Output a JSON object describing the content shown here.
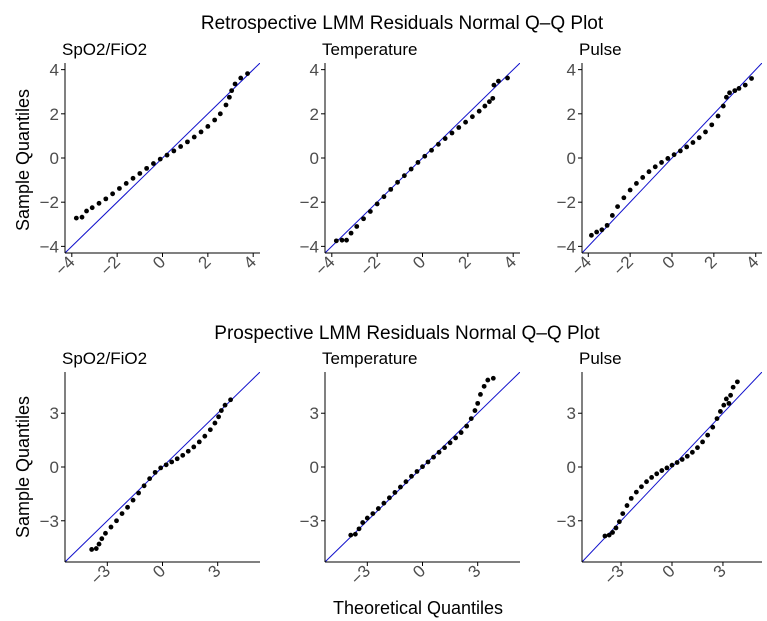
{
  "figure": {
    "x_axis_label": "Theoretical Quantiles",
    "y_axis_label_top": "Sample Quantiles",
    "y_axis_label_bottom": "Sample Quantiles"
  },
  "colors": {
    "reference_line": "#1111cc",
    "points": "#000000",
    "axis": "#000000",
    "tick_labels": "#4d4d4d",
    "text": "#000000"
  },
  "chart_data": [
    {
      "type": "scatter",
      "title": "Retrospective LMM Residuals Normal Q–Q Plot",
      "panels": [
        {
          "subtitle": "SpO2/FiO2",
          "xlim": [
            -4.3,
            4.3
          ],
          "ylim": [
            -4.3,
            4.3
          ],
          "x_ticks": [
            -4,
            -2,
            0,
            2,
            4
          ],
          "x_tick_labels": [
            "-4",
            "-2",
            "0",
            "2",
            "4"
          ],
          "y_ticks": [
            -4,
            -2,
            0,
            2,
            4
          ],
          "y_tick_labels": [
            "-4",
            "-2",
            "0",
            "2",
            "4"
          ],
          "reference_line": {
            "slope": 1,
            "intercept": 0
          },
          "points": [
            [
              -3.8,
              -2.72
            ],
            [
              -3.55,
              -2.68
            ],
            [
              -3.35,
              -2.4
            ],
            [
              -3.1,
              -2.25
            ],
            [
              -2.8,
              -2.05
            ],
            [
              -2.5,
              -1.85
            ],
            [
              -2.2,
              -1.62
            ],
            [
              -1.9,
              -1.38
            ],
            [
              -1.6,
              -1.15
            ],
            [
              -1.3,
              -0.92
            ],
            [
              -1.0,
              -0.7
            ],
            [
              -0.7,
              -0.47
            ],
            [
              -0.4,
              -0.25
            ],
            [
              -0.1,
              -0.05
            ],
            [
              0.2,
              0.13
            ],
            [
              0.5,
              0.32
            ],
            [
              0.8,
              0.52
            ],
            [
              1.1,
              0.73
            ],
            [
              1.4,
              0.95
            ],
            [
              1.7,
              1.18
            ],
            [
              2.0,
              1.43
            ],
            [
              2.3,
              1.72
            ],
            [
              2.55,
              2.0
            ],
            [
              2.8,
              2.4
            ],
            [
              2.95,
              2.75
            ],
            [
              3.05,
              3.05
            ],
            [
              3.2,
              3.35
            ],
            [
              3.45,
              3.62
            ],
            [
              3.75,
              3.82
            ]
          ]
        },
        {
          "subtitle": "Temperature",
          "xlim": [
            -4.3,
            4.3
          ],
          "ylim": [
            -4.3,
            4.3
          ],
          "x_ticks": [
            -4,
            -2,
            0,
            2,
            4
          ],
          "x_tick_labels": [
            "-4",
            "-2",
            "0",
            "2",
            "4"
          ],
          "y_ticks": [
            -4,
            -2,
            0,
            2,
            4
          ],
          "y_tick_labels": [
            "-4",
            "-2",
            "0",
            "2",
            "4"
          ],
          "reference_line": {
            "slope": 1,
            "intercept": 0
          },
          "points": [
            [
              -3.8,
              -3.75
            ],
            [
              -3.55,
              -3.72
            ],
            [
              -3.35,
              -3.72
            ],
            [
              -3.15,
              -3.4
            ],
            [
              -2.9,
              -3.1
            ],
            [
              -2.6,
              -2.75
            ],
            [
              -2.3,
              -2.42
            ],
            [
              -2.0,
              -2.08
            ],
            [
              -1.7,
              -1.75
            ],
            [
              -1.4,
              -1.42
            ],
            [
              -1.1,
              -1.1
            ],
            [
              -0.8,
              -0.8
            ],
            [
              -0.5,
              -0.5
            ],
            [
              -0.2,
              -0.2
            ],
            [
              0.1,
              0.08
            ],
            [
              0.4,
              0.35
            ],
            [
              0.7,
              0.62
            ],
            [
              1.0,
              0.88
            ],
            [
              1.3,
              1.13
            ],
            [
              1.6,
              1.38
            ],
            [
              1.9,
              1.62
            ],
            [
              2.2,
              1.87
            ],
            [
              2.5,
              2.12
            ],
            [
              2.75,
              2.35
            ],
            [
              2.95,
              2.55
            ],
            [
              3.1,
              2.7
            ],
            [
              3.15,
              3.3
            ],
            [
              3.35,
              3.48
            ],
            [
              3.75,
              3.62
            ]
          ]
        },
        {
          "subtitle": "Pulse",
          "xlim": [
            -4.3,
            4.3
          ],
          "ylim": [
            -4.3,
            4.3
          ],
          "x_ticks": [
            -4,
            -2,
            0,
            2,
            4
          ],
          "x_tick_labels": [
            "-4",
            "-2",
            "0",
            "2",
            "4"
          ],
          "y_ticks": [
            -4,
            -2,
            0,
            2,
            4
          ],
          "y_tick_labels": [
            "-4",
            "-2",
            "0",
            "2",
            "4"
          ],
          "reference_line": {
            "slope": 1,
            "intercept": 0
          },
          "points": [
            [
              -3.85,
              -3.5
            ],
            [
              -3.6,
              -3.35
            ],
            [
              -3.35,
              -3.25
            ],
            [
              -3.1,
              -3.05
            ],
            [
              -2.85,
              -2.6
            ],
            [
              -2.6,
              -2.2
            ],
            [
              -2.3,
              -1.8
            ],
            [
              -2.0,
              -1.45
            ],
            [
              -1.7,
              -1.15
            ],
            [
              -1.4,
              -0.88
            ],
            [
              -1.1,
              -0.62
            ],
            [
              -0.8,
              -0.4
            ],
            [
              -0.5,
              -0.2
            ],
            [
              -0.2,
              -0.02
            ],
            [
              0.1,
              0.15
            ],
            [
              0.4,
              0.32
            ],
            [
              0.7,
              0.5
            ],
            [
              1.0,
              0.7
            ],
            [
              1.3,
              0.92
            ],
            [
              1.6,
              1.18
            ],
            [
              1.9,
              1.5
            ],
            [
              2.2,
              1.9
            ],
            [
              2.45,
              2.35
            ],
            [
              2.6,
              2.75
            ],
            [
              2.75,
              2.95
            ],
            [
              3.0,
              3.05
            ],
            [
              3.2,
              3.15
            ],
            [
              3.5,
              3.3
            ],
            [
              3.8,
              3.6
            ]
          ]
        }
      ]
    },
    {
      "type": "scatter",
      "title": "Prospective LMM Residuals Normal Q–Q Plot",
      "panels": [
        {
          "subtitle": "SpO2/FiO2",
          "xlim": [
            -5.3,
            5.3
          ],
          "ylim": [
            -5.3,
            5.3
          ],
          "x_ticks": [
            -3,
            0,
            3
          ],
          "x_tick_labels": [
            "-3",
            "0",
            "3"
          ],
          "y_ticks": [
            -3,
            0,
            3
          ],
          "y_tick_labels": [
            "-3",
            "0",
            "3"
          ],
          "reference_line": {
            "slope": 1,
            "intercept": 0
          },
          "points": [
            [
              -3.85,
              -4.6
            ],
            [
              -3.6,
              -4.55
            ],
            [
              -3.45,
              -4.3
            ],
            [
              -3.3,
              -4.0
            ],
            [
              -3.1,
              -3.7
            ],
            [
              -2.8,
              -3.35
            ],
            [
              -2.5,
              -3.0
            ],
            [
              -2.2,
              -2.6
            ],
            [
              -1.9,
              -2.25
            ],
            [
              -1.6,
              -1.85
            ],
            [
              -1.3,
              -1.45
            ],
            [
              -1.0,
              -1.05
            ],
            [
              -0.7,
              -0.65
            ],
            [
              -0.4,
              -0.3
            ],
            [
              -0.1,
              -0.05
            ],
            [
              0.2,
              0.12
            ],
            [
              0.5,
              0.28
            ],
            [
              0.8,
              0.46
            ],
            [
              1.1,
              0.65
            ],
            [
              1.4,
              0.88
            ],
            [
              1.7,
              1.12
            ],
            [
              2.0,
              1.4
            ],
            [
              2.3,
              1.72
            ],
            [
              2.6,
              2.08
            ],
            [
              2.85,
              2.45
            ],
            [
              3.05,
              2.8
            ],
            [
              3.2,
              3.15
            ],
            [
              3.4,
              3.45
            ],
            [
              3.7,
              3.75
            ]
          ]
        },
        {
          "subtitle": "Temperature",
          "xlim": [
            -5.3,
            5.3
          ],
          "ylim": [
            -5.3,
            5.3
          ],
          "x_ticks": [
            -3,
            0,
            3
          ],
          "x_tick_labels": [
            "-3",
            "0",
            "3"
          ],
          "y_ticks": [
            -3,
            0,
            3
          ],
          "y_tick_labels": [
            "-3",
            "0",
            "3"
          ],
          "reference_line": {
            "slope": 1,
            "intercept": 0
          },
          "points": [
            [
              -3.9,
              -3.8
            ],
            [
              -3.65,
              -3.75
            ],
            [
              -3.45,
              -3.45
            ],
            [
              -3.25,
              -3.1
            ],
            [
              -3.0,
              -2.85
            ],
            [
              -2.7,
              -2.6
            ],
            [
              -2.4,
              -2.32
            ],
            [
              -2.1,
              -2.02
            ],
            [
              -1.8,
              -1.72
            ],
            [
              -1.5,
              -1.42
            ],
            [
              -1.2,
              -1.12
            ],
            [
              -0.9,
              -0.82
            ],
            [
              -0.6,
              -0.52
            ],
            [
              -0.3,
              -0.25
            ],
            [
              0.0,
              0.02
            ],
            [
              0.3,
              0.28
            ],
            [
              0.6,
              0.55
            ],
            [
              0.9,
              0.82
            ],
            [
              1.2,
              1.08
            ],
            [
              1.5,
              1.35
            ],
            [
              1.8,
              1.62
            ],
            [
              2.1,
              1.92
            ],
            [
              2.4,
              2.28
            ],
            [
              2.65,
              2.7
            ],
            [
              2.85,
              3.15
            ],
            [
              3.0,
              3.55
            ],
            [
              3.15,
              4.05
            ],
            [
              3.35,
              4.5
            ],
            [
              3.55,
              4.85
            ],
            [
              3.85,
              4.95
            ]
          ]
        },
        {
          "subtitle": "Pulse",
          "xlim": [
            -5.3,
            5.3
          ],
          "ylim": [
            -5.3,
            5.3
          ],
          "x_ticks": [
            -3,
            0,
            3
          ],
          "x_tick_labels": [
            "-3",
            "0",
            "3"
          ],
          "y_ticks": [
            -3,
            0,
            3
          ],
          "y_tick_labels": [
            "-3",
            "0",
            "3"
          ],
          "reference_line": {
            "slope": 1,
            "intercept": 0
          },
          "points": [
            [
              -3.95,
              -3.85
            ],
            [
              -3.7,
              -3.8
            ],
            [
              -3.5,
              -3.65
            ],
            [
              -3.3,
              -3.4
            ],
            [
              -3.1,
              -3.05
            ],
            [
              -2.9,
              -2.6
            ],
            [
              -2.65,
              -2.15
            ],
            [
              -2.4,
              -1.75
            ],
            [
              -2.1,
              -1.4
            ],
            [
              -1.8,
              -1.1
            ],
            [
              -1.5,
              -0.82
            ],
            [
              -1.2,
              -0.58
            ],
            [
              -0.9,
              -0.38
            ],
            [
              -0.6,
              -0.2
            ],
            [
              -0.3,
              -0.05
            ],
            [
              0.0,
              0.1
            ],
            [
              0.3,
              0.25
            ],
            [
              0.6,
              0.42
            ],
            [
              0.9,
              0.6
            ],
            [
              1.2,
              0.82
            ],
            [
              1.5,
              1.08
            ],
            [
              1.8,
              1.4
            ],
            [
              2.1,
              1.78
            ],
            [
              2.4,
              2.22
            ],
            [
              2.65,
              2.7
            ],
            [
              2.85,
              3.1
            ],
            [
              3.05,
              3.45
            ],
            [
              3.2,
              3.8
            ],
            [
              3.35,
              3.55
            ],
            [
              3.45,
              4.0
            ],
            [
              3.6,
              4.45
            ],
            [
              3.85,
              4.75
            ]
          ]
        }
      ]
    }
  ]
}
